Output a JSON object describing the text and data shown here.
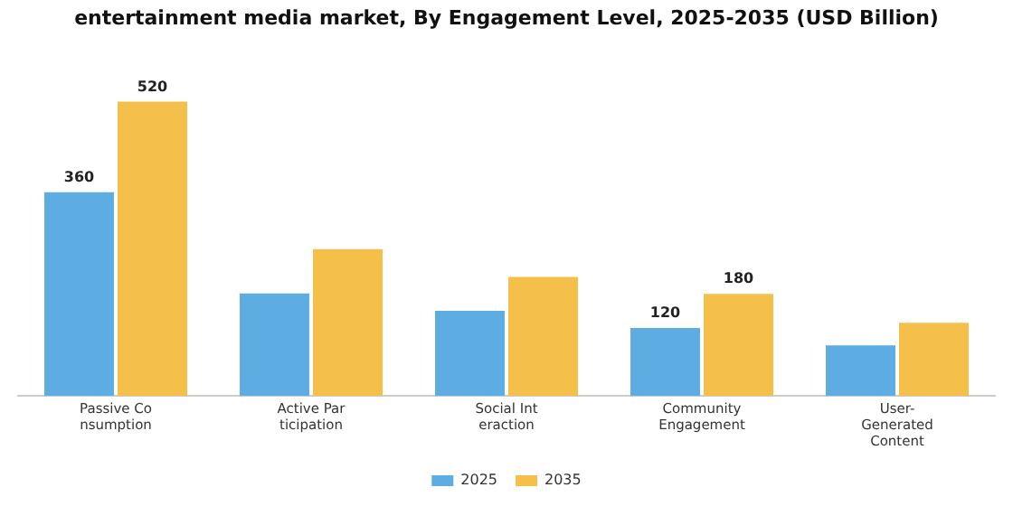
{
  "chart_data": {
    "type": "bar",
    "title": "entertainment media market, By Engagement Level, 2025-2035 (USD Billion)",
    "categories": [
      "Passive Co\nnsumption",
      "Active Par\nticipation",
      "Social Int\neraction",
      "Community\nEngagement",
      "User-\nGenerated\nContent"
    ],
    "series": [
      {
        "name": "2025",
        "color": "#5dade2",
        "values": [
          360,
          181,
          150,
          120,
          89
        ],
        "value_labels": [
          "360",
          null,
          null,
          "120",
          null
        ]
      },
      {
        "name": "2035",
        "color": "#f5c04a",
        "values": [
          520,
          259,
          210,
          180,
          129
        ],
        "value_labels": [
          "520",
          null,
          null,
          "180",
          null
        ]
      }
    ],
    "tick_labels": "x",
    "grid": false,
    "legend": "bottom"
  }
}
